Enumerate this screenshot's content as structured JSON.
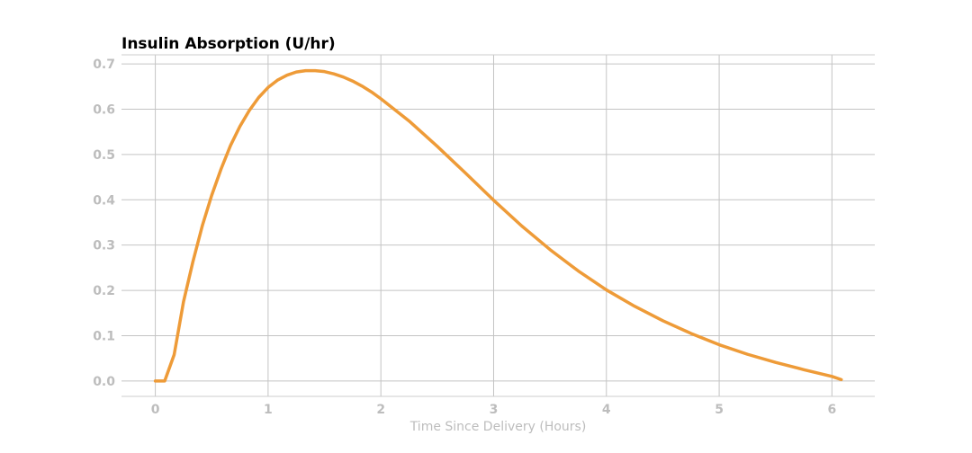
{
  "chart_data": {
    "type": "line",
    "title": "Insulin Absorption (U/hr)",
    "xlabel": "Time Since Delivery (Hours)",
    "ylabel": "",
    "xlim": [
      -0.3,
      6.38
    ],
    "ylim": [
      -0.034,
      0.72
    ],
    "x_ticks": [
      0,
      1,
      2,
      3,
      4,
      5,
      6
    ],
    "x_tick_labels": [
      "0",
      "1",
      "2",
      "3",
      "4",
      "5",
      "6"
    ],
    "y_ticks": [
      0.0,
      0.1,
      0.2,
      0.3,
      0.4,
      0.5,
      0.6,
      0.7
    ],
    "y_tick_labels": [
      "0.0",
      "0.1",
      "0.2",
      "0.3",
      "0.4",
      "0.5",
      "0.6",
      "0.7"
    ],
    "grid": true,
    "series": [
      {
        "color": "#EE9B38",
        "x": [
          0,
          0.083,
          0.167,
          0.25,
          0.333,
          0.417,
          0.5,
          0.583,
          0.667,
          0.75,
          0.833,
          0.917,
          1.0,
          1.083,
          1.167,
          1.25,
          1.333,
          1.417,
          1.5,
          1.583,
          1.667,
          1.75,
          1.833,
          1.917,
          2.0,
          2.25,
          2.5,
          2.75,
          3.0,
          3.25,
          3.5,
          3.75,
          4.0,
          4.25,
          4.5,
          4.75,
          5.0,
          5.25,
          5.5,
          5.75,
          6.0,
          6.083
        ],
        "y": [
          0.0,
          0.0,
          0.058,
          0.175,
          0.263,
          0.343,
          0.41,
          0.468,
          0.52,
          0.562,
          0.597,
          0.626,
          0.648,
          0.664,
          0.675,
          0.682,
          0.685,
          0.685,
          0.683,
          0.678,
          0.671,
          0.662,
          0.651,
          0.638,
          0.623,
          0.574,
          0.518,
          0.459,
          0.399,
          0.342,
          0.29,
          0.243,
          0.201,
          0.165,
          0.133,
          0.105,
          0.08,
          0.059,
          0.041,
          0.025,
          0.01,
          0.003
        ]
      }
    ]
  }
}
